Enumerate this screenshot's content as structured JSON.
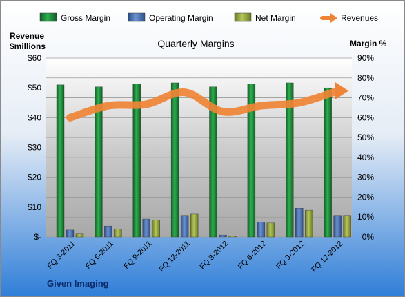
{
  "chart_data": {
    "type": "bar",
    "title": "Quarterly Margins",
    "left_axis_label": [
      "Revenue",
      "$millions"
    ],
    "right_axis_label": "Margin %",
    "footer": "Given Imaging",
    "categories": [
      "FQ 3-2011",
      "FQ 6-2011",
      "FQ 9-2011",
      "FQ 12-2011",
      "FQ 3-2012",
      "FQ 6-2012",
      "FQ 9-2012",
      "FQ 12-2012"
    ],
    "left_ticks": [
      "$-",
      "$10",
      "$20",
      "$30",
      "$40",
      "$50",
      "$60"
    ],
    "right_ticks": [
      "0%",
      "10%",
      "20%",
      "30%",
      "40%",
      "50%",
      "60%",
      "70%",
      "80%",
      "90%"
    ],
    "left_ylim": [
      0,
      60
    ],
    "right_ylim": [
      0,
      90
    ],
    "legend_position": "top",
    "series": [
      {
        "name": "Gross Margin",
        "kind": "bar",
        "axis": "right",
        "color": "#1e8a3c",
        "values": [
          76.5,
          75.5,
          77,
          77.5,
          75.5,
          77,
          77.5,
          75
        ]
      },
      {
        "name": "Operating Margin",
        "kind": "bar",
        "axis": "right",
        "color": "#4a6fb0",
        "values": [
          3.5,
          5.5,
          9,
          10.5,
          1,
          7.5,
          14.5,
          10.5
        ]
      },
      {
        "name": "Net Margin",
        "kind": "bar",
        "axis": "right",
        "color": "#93a83e",
        "values": [
          1.5,
          4,
          8.5,
          11.5,
          0,
          7,
          13.5,
          10.5
        ]
      },
      {
        "name": "Revenues",
        "kind": "line",
        "axis": "left",
        "color": "#ef8436",
        "values": [
          40,
          44,
          44.5,
          48.5,
          42,
          44,
          45,
          49
        ]
      }
    ]
  }
}
